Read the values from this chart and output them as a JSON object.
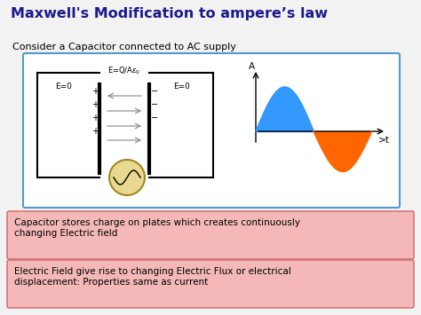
{
  "title": "Maxwell's Modification to ampere’s law",
  "subtitle": "Consider a Capacitor connected to AC supply",
  "bg_color": "#d8d8d8",
  "title_color": "#1a1a8c",
  "subtitle_color": "#000000",
  "box1_text": "Capacitor stores charge on plates which creates continuously\nchanging Electric field",
  "box2_text": "Electric Field give rise to changing Electric Flux or electrical\ndisplacement: Properties same as current",
  "box_bg": "#f4b8b8",
  "box_border": "#cc6666",
  "diagram_bg": "#ffffff",
  "diagram_border": "#5599cc",
  "sine_color_pos": "#3399ff",
  "sine_color_neg": "#ff6600",
  "ac_circle_color": "#e8d890",
  "ac_circle_edge": "#a08820"
}
